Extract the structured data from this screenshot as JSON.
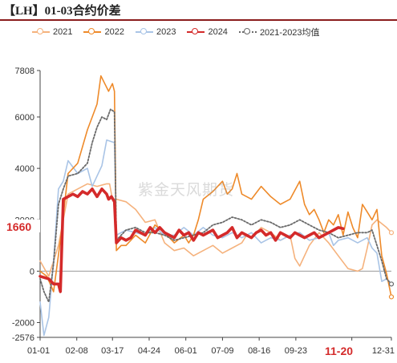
{
  "title": "【LH】01-03合约价差",
  "watermark": "紫金天风期货",
  "colors": {
    "y2021": "#f5b27d",
    "y2022": "#ee8a2a",
    "y2023": "#a9c4e6",
    "y2024": "#d42a2a",
    "avg": "#6a6a6a"
  },
  "chart_data": {
    "type": "line",
    "title": "",
    "xlabel": "",
    "ylabel": "",
    "ylim": [
      -2576,
      7808
    ],
    "y_ticks": [
      7808,
      6000,
      4000,
      2000,
      0,
      -2000,
      -2576
    ],
    "x_ticks": [
      "01-01",
      "02-08",
      "03-17",
      "04-24",
      "06-01",
      "07-09",
      "08-16",
      "09-23",
      "11-20",
      "12-31"
    ],
    "annotations": {
      "y_value": "1660",
      "x_date": "11-20"
    },
    "legend_position": "top",
    "grid": false,
    "series": [
      {
        "name": "2021",
        "values": [
          [
            1,
            400
          ],
          [
            10,
            -200
          ],
          [
            20,
            1000
          ],
          [
            30,
            3000
          ],
          [
            40,
            3200
          ],
          [
            50,
            3400
          ],
          [
            60,
            3300
          ],
          [
            70,
            3400
          ],
          [
            73,
            3400
          ],
          [
            76,
            2800
          ],
          [
            80,
            2800
          ],
          [
            90,
            2700
          ],
          [
            100,
            2400
          ],
          [
            110,
            1900
          ],
          [
            120,
            2000
          ],
          [
            130,
            1100
          ],
          [
            140,
            800
          ],
          [
            150,
            900
          ],
          [
            160,
            600
          ],
          [
            170,
            800
          ],
          [
            180,
            1000
          ],
          [
            190,
            700
          ],
          [
            200,
            900
          ],
          [
            210,
            1100
          ],
          [
            215,
            1400
          ],
          [
            220,
            1300
          ],
          [
            230,
            1700
          ],
          [
            240,
            1500
          ],
          [
            250,
            1200
          ],
          [
            260,
            1400
          ],
          [
            265,
            500
          ],
          [
            270,
            200
          ],
          [
            280,
            1000
          ],
          [
            290,
            1500
          ],
          [
            300,
            1100
          ],
          [
            310,
            600
          ],
          [
            320,
            100
          ],
          [
            330,
            0
          ],
          [
            335,
            100
          ],
          [
            340,
            900
          ],
          [
            345,
            1800
          ],
          [
            350,
            2000
          ],
          [
            360,
            1700
          ],
          [
            365,
            1500
          ]
        ]
      },
      {
        "name": "2022",
        "values": [
          [
            1,
            0
          ],
          [
            8,
            -200
          ],
          [
            15,
            -800
          ],
          [
            22,
            1200
          ],
          [
            30,
            3800
          ],
          [
            40,
            4200
          ],
          [
            50,
            5500
          ],
          [
            55,
            6000
          ],
          [
            60,
            6500
          ],
          [
            64,
            7600
          ],
          [
            68,
            7300
          ],
          [
            72,
            7000
          ],
          [
            76,
            7300
          ],
          [
            78,
            7000
          ],
          [
            80,
            800
          ],
          [
            85,
            1000
          ],
          [
            90,
            1000
          ],
          [
            100,
            1400
          ],
          [
            110,
            1100
          ],
          [
            120,
            1800
          ],
          [
            130,
            1500
          ],
          [
            140,
            1100
          ],
          [
            150,
            1400
          ],
          [
            155,
            1100
          ],
          [
            160,
            1400
          ],
          [
            165,
            2000
          ],
          [
            170,
            2800
          ],
          [
            180,
            3100
          ],
          [
            190,
            3500
          ],
          [
            195,
            3000
          ],
          [
            200,
            3200
          ],
          [
            205,
            3800
          ],
          [
            210,
            3000
          ],
          [
            220,
            2800
          ],
          [
            230,
            3300
          ],
          [
            240,
            2900
          ],
          [
            250,
            2600
          ],
          [
            260,
            2800
          ],
          [
            270,
            3500
          ],
          [
            275,
            2600
          ],
          [
            280,
            2200
          ],
          [
            285,
            2400
          ],
          [
            290,
            2000
          ],
          [
            295,
            1500
          ],
          [
            300,
            2000
          ],
          [
            305,
            1800
          ],
          [
            310,
            2200
          ],
          [
            315,
            1400
          ],
          [
            320,
            2300
          ],
          [
            325,
            1700
          ],
          [
            330,
            1300
          ],
          [
            335,
            2600
          ],
          [
            340,
            2300
          ],
          [
            345,
            2000
          ],
          [
            350,
            2400
          ],
          [
            355,
            600
          ],
          [
            360,
            -100
          ],
          [
            365,
            -1000
          ]
        ]
      },
      {
        "name": "2023",
        "values": [
          [
            1,
            -1200
          ],
          [
            5,
            -2500
          ],
          [
            10,
            -1800
          ],
          [
            15,
            400
          ],
          [
            20,
            3200
          ],
          [
            25,
            3500
          ],
          [
            30,
            4300
          ],
          [
            40,
            3800
          ],
          [
            50,
            4000
          ],
          [
            55,
            3300
          ],
          [
            60,
            3700
          ],
          [
            65,
            4100
          ],
          [
            70,
            5100
          ],
          [
            78,
            5000
          ],
          [
            80,
            1400
          ],
          [
            90,
            1600
          ],
          [
            100,
            1500
          ],
          [
            110,
            1400
          ],
          [
            120,
            1700
          ],
          [
            130,
            1400
          ],
          [
            140,
            1400
          ],
          [
            150,
            1700
          ],
          [
            160,
            1400
          ],
          [
            170,
            1700
          ],
          [
            180,
            1400
          ],
          [
            190,
            1300
          ],
          [
            200,
            1500
          ],
          [
            210,
            1300
          ],
          [
            220,
            1500
          ],
          [
            230,
            1100
          ],
          [
            240,
            1300
          ],
          [
            250,
            1200
          ],
          [
            260,
            1400
          ],
          [
            270,
            1500
          ],
          [
            280,
            1200
          ],
          [
            290,
            1300
          ],
          [
            300,
            1500
          ],
          [
            305,
            1000
          ],
          [
            310,
            1200
          ],
          [
            320,
            1300
          ],
          [
            330,
            1100
          ],
          [
            340,
            1300
          ],
          [
            345,
            900
          ],
          [
            350,
            700
          ],
          [
            355,
            -400
          ],
          [
            360,
            -300
          ],
          [
            365,
            -500
          ]
        ]
      },
      {
        "name": "2024",
        "values": [
          [
            1,
            -200
          ],
          [
            10,
            -300
          ],
          [
            15,
            -500
          ],
          [
            20,
            -500
          ],
          [
            22,
            -800
          ],
          [
            25,
            2800
          ],
          [
            30,
            2900
          ],
          [
            35,
            3000
          ],
          [
            40,
            2900
          ],
          [
            45,
            3100
          ],
          [
            50,
            3000
          ],
          [
            55,
            3200
          ],
          [
            60,
            2900
          ],
          [
            65,
            3200
          ],
          [
            70,
            3000
          ],
          [
            72,
            2800
          ],
          [
            75,
            2900
          ],
          [
            78,
            2700
          ],
          [
            80,
            1100
          ],
          [
            85,
            1300
          ],
          [
            90,
            1200
          ],
          [
            95,
            1300
          ],
          [
            100,
            1600
          ],
          [
            105,
            1500
          ],
          [
            110,
            1400
          ],
          [
            115,
            1700
          ],
          [
            120,
            1500
          ],
          [
            125,
            1700
          ],
          [
            130,
            1500
          ],
          [
            135,
            1400
          ],
          [
            140,
            1300
          ],
          [
            145,
            1600
          ],
          [
            150,
            1400
          ],
          [
            155,
            1500
          ],
          [
            160,
            1200
          ],
          [
            165,
            1500
          ],
          [
            170,
            1400
          ],
          [
            175,
            1500
          ],
          [
            180,
            1600
          ],
          [
            185,
            1300
          ],
          [
            190,
            1400
          ],
          [
            195,
            1500
          ],
          [
            200,
            1700
          ],
          [
            205,
            1300
          ],
          [
            210,
            1500
          ],
          [
            215,
            1400
          ],
          [
            220,
            1300
          ],
          [
            225,
            1500
          ],
          [
            230,
            1600
          ],
          [
            235,
            1400
          ],
          [
            240,
            1500
          ],
          [
            245,
            1200
          ],
          [
            250,
            1500
          ],
          [
            255,
            1400
          ],
          [
            260,
            1300
          ],
          [
            265,
            1500
          ],
          [
            270,
            1400
          ],
          [
            275,
            1300
          ],
          [
            280,
            1400
          ],
          [
            285,
            1500
          ],
          [
            290,
            1300
          ],
          [
            295,
            1400
          ],
          [
            300,
            1500
          ],
          [
            305,
            1600
          ],
          [
            310,
            1700
          ],
          [
            315,
            1660
          ]
        ]
      },
      {
        "name": "2021-2023均值",
        "values": [
          [
            1,
            -300
          ],
          [
            5,
            -800
          ],
          [
            10,
            -1200
          ],
          [
            15,
            300
          ],
          [
            20,
            2600
          ],
          [
            25,
            3200
          ],
          [
            30,
            3700
          ],
          [
            40,
            3800
          ],
          [
            50,
            4200
          ],
          [
            55,
            5000
          ],
          [
            60,
            5600
          ],
          [
            65,
            6000
          ],
          [
            70,
            5900
          ],
          [
            74,
            6300
          ],
          [
            78,
            6200
          ],
          [
            80,
            1200
          ],
          [
            90,
            1600
          ],
          [
            100,
            1700
          ],
          [
            110,
            1500
          ],
          [
            120,
            1500
          ],
          [
            130,
            1400
          ],
          [
            140,
            1200
          ],
          [
            150,
            1300
          ],
          [
            160,
            1400
          ],
          [
            170,
            1500
          ],
          [
            180,
            1800
          ],
          [
            190,
            1900
          ],
          [
            200,
            2100
          ],
          [
            210,
            2000
          ],
          [
            220,
            1800
          ],
          [
            230,
            2000
          ],
          [
            240,
            1900
          ],
          [
            250,
            1700
          ],
          [
            260,
            1800
          ],
          [
            270,
            2000
          ],
          [
            280,
            1800
          ],
          [
            290,
            1600
          ],
          [
            300,
            1500
          ],
          [
            310,
            1300
          ],
          [
            320,
            1400
          ],
          [
            330,
            1500
          ],
          [
            340,
            1500
          ],
          [
            345,
            1600
          ],
          [
            350,
            1000
          ],
          [
            355,
            400
          ],
          [
            360,
            -300
          ],
          [
            365,
            -500
          ]
        ]
      }
    ]
  }
}
